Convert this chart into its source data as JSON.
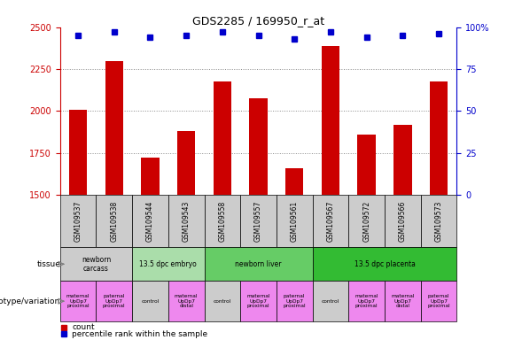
{
  "title": "GDS2285 / 169950_r_at",
  "samples": [
    "GSM109537",
    "GSM109538",
    "GSM109544",
    "GSM109543",
    "GSM109558",
    "GSM109557",
    "GSM109561",
    "GSM109567",
    "GSM109572",
    "GSM109566",
    "GSM109573"
  ],
  "counts": [
    2005,
    2300,
    1720,
    1880,
    2175,
    2075,
    1660,
    2390,
    1860,
    1915,
    2175
  ],
  "percentiles": [
    95,
    97,
    94,
    95,
    97,
    95,
    93,
    97,
    94,
    95,
    96
  ],
  "ylim_left": [
    1500,
    2500
  ],
  "ylim_right": [
    0,
    100
  ],
  "yticks_left": [
    1500,
    1750,
    2000,
    2250,
    2500
  ],
  "yticks_right": [
    0,
    25,
    50,
    75,
    100
  ],
  "right_tick_labels": [
    "0",
    "25",
    "50",
    "75",
    "100%"
  ],
  "bar_color": "#cc0000",
  "dot_color": "#0000cc",
  "grid_color": "#888888",
  "sample_box_color": "#cccccc",
  "tissue_groups": [
    {
      "label": "newborn\ncarcass",
      "start": 0,
      "end": 2,
      "color": "#cccccc"
    },
    {
      "label": "13.5 dpc embryo",
      "start": 2,
      "end": 4,
      "color": "#aaddaa"
    },
    {
      "label": "newborn liver",
      "start": 4,
      "end": 7,
      "color": "#66cc66"
    },
    {
      "label": "13.5 dpc placenta",
      "start": 7,
      "end": 11,
      "color": "#33bb33"
    }
  ],
  "genotype_groups": [
    {
      "label": "maternal\nUpDp7\nproximal",
      "start": 0,
      "end": 1,
      "color": "#ee88ee"
    },
    {
      "label": "paternal\nUpDp7\nproximal",
      "start": 1,
      "end": 2,
      "color": "#ee88ee"
    },
    {
      "label": "control",
      "start": 2,
      "end": 3,
      "color": "#cccccc"
    },
    {
      "label": "maternal\nUpDp7\ndistal",
      "start": 3,
      "end": 4,
      "color": "#ee88ee"
    },
    {
      "label": "control",
      "start": 4,
      "end": 5,
      "color": "#cccccc"
    },
    {
      "label": "maternal\nUpDp7\nproximal",
      "start": 5,
      "end": 6,
      "color": "#ee88ee"
    },
    {
      "label": "paternal\nUpDp7\nproximal",
      "start": 6,
      "end": 7,
      "color": "#ee88ee"
    },
    {
      "label": "control",
      "start": 7,
      "end": 8,
      "color": "#cccccc"
    },
    {
      "label": "maternal\nUpDp7\nproximal",
      "start": 8,
      "end": 9,
      "color": "#ee88ee"
    },
    {
      "label": "maternal\nUpDp7\ndistal",
      "start": 9,
      "end": 10,
      "color": "#ee88ee"
    },
    {
      "label": "paternal\nUpDp7\nproximal",
      "start": 10,
      "end": 11,
      "color": "#ee88ee"
    }
  ]
}
